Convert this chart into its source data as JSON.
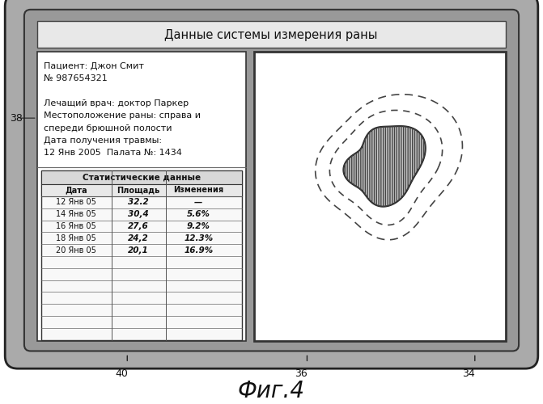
{
  "title": "Данные системы измерения раны",
  "fig_label": "Фиг.4",
  "labels": {
    "num38": "38",
    "num40": "40",
    "num36": "36",
    "num34": "34"
  },
  "patient_info": [
    "Пациент: Джон Смит",
    "№ 987654321",
    "",
    "Лечащий врач: доктор Паркер",
    "Местоположение раны: справа и",
    "спереди брюшной полости",
    "Дата получения травмы:",
    "12 Янв 2005  Палата №: 1434"
  ],
  "table_header": "Статистические данные",
  "table_col_headers": [
    "Дата",
    "Площадь",
    "Изменения"
  ],
  "table_rows": [
    [
      "12 Янв 05",
      "32.2",
      "—"
    ],
    [
      "14 Янв 05",
      "30,4",
      "5.6%"
    ],
    [
      "16 Янв 05",
      "27,6",
      "9.2%"
    ],
    [
      "18 Янв 05",
      "24,2",
      "12.3%"
    ],
    [
      "20 Янв 05",
      "20,1",
      "16.9%"
    ]
  ],
  "empty_rows": 7,
  "bg_fig": "#ffffff",
  "bg_device_outer": "#888888",
  "bg_device_inner": "#777777",
  "bg_title_bar": "#e8e8e8",
  "bg_left_panel": "#ffffff",
  "bg_right_panel": "#ffffff",
  "table_header_bg": "#d8d8d8",
  "table_colhead_bg": "#e8e8e8"
}
